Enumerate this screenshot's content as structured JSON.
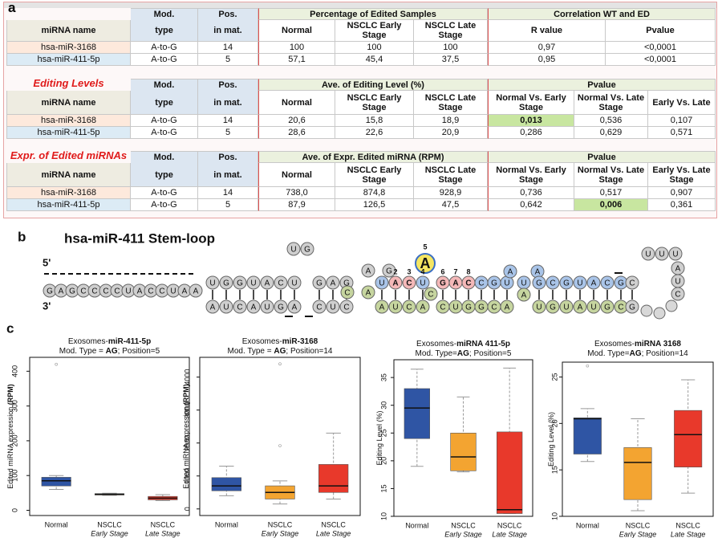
{
  "panel_labels": [
    "a",
    "b",
    "c"
  ],
  "tables": [
    {
      "head_top": [
        "Mod.",
        "Pos."
      ],
      "groups": [
        {
          "title": "Percentage of Edited Samples",
          "span": 3
        },
        {
          "title": "Correlation WT and ED",
          "span": 2
        }
      ],
      "head": [
        "miRNA name",
        "type",
        "in mat.",
        "Normal",
        "NSCLC Early Stage",
        "NSCLC Late Stage",
        "R value",
        "Pvalue"
      ],
      "rows": [
        [
          "hsa-miR-3168",
          "A-to-G",
          14,
          100,
          100,
          100,
          "0,97",
          "<0,0001"
        ],
        [
          "hsa-miR-411-5p",
          "A-to-G",
          5,
          "57,1",
          "45,4",
          "37,5",
          "0,95",
          "<0,0001"
        ]
      ]
    },
    {
      "label": "Editing Levels",
      "head_top": [
        "Mod.",
        "Pos."
      ],
      "groups": [
        {
          "title": "Ave. of Editing Level (%)",
          "span": 3
        },
        {
          "title": "Pvalue",
          "span": 3
        }
      ],
      "head": [
        "miRNA name",
        "type",
        "in mat.",
        "Normal",
        "NSCLC Early Stage",
        "NSCLC Late Stage",
        "Normal Vs. Early Stage",
        "Normal Vs. Late Stage",
        "Early Vs. Late"
      ],
      "rows": [
        [
          "hsa-miR-3168",
          "A-to-G",
          14,
          "20,6",
          "15,8",
          "18,9",
          "0,013",
          "0,536",
          "0,107"
        ],
        [
          "hsa-miR-411-5p",
          "A-to-G",
          5,
          "28,6",
          "22,6",
          "20,9",
          "0,286",
          "0,629",
          "0,571"
        ]
      ],
      "highlight": [
        0,
        6
      ]
    },
    {
      "label": "Expr. of Edited miRNAs",
      "head_top": [
        "Mod.",
        "Pos."
      ],
      "groups": [
        {
          "title": "Ave. of Expr. Edited miRNA (RPM)",
          "span": 3
        },
        {
          "title": "Pvalue",
          "span": 3
        }
      ],
      "head": [
        "miRNA name",
        "type",
        "in mat.",
        "Normal",
        "NSCLC Early Stage",
        "NSCLC Late Stage",
        "Normal Vs. Early Stage",
        "Normal Vs. Late Stage",
        "Early Vs. Late Stage"
      ],
      "rows": [
        [
          "hsa-miR-3168",
          "A-to-G",
          14,
          "738,0",
          "874,8",
          "928,9",
          "0,736",
          "0,517",
          "0,907"
        ],
        [
          "hsa-miR-411-5p",
          "A-to-G",
          5,
          "87,9",
          "126,5",
          "47,5",
          "0,642",
          "0,006",
          "0,361"
        ]
      ],
      "highlight": [
        1,
        7
      ]
    }
  ],
  "stem_loop": {
    "title": "hsa-miR-411 Stem-loop",
    "five_prime": "5'",
    "three_prime": "3'",
    "segments": [
      "GAGCCCCUACCUAA",
      "UGGUACU",
      "AUCAUGA",
      "UG",
      "GAG",
      "CUC",
      "A",
      "G",
      "CA",
      "UACU",
      "AUCA",
      "A",
      "C",
      "GACCGU",
      "CUGGCA",
      "AA",
      "U",
      "A",
      "GCGUACG",
      "UGUAUGC",
      "C",
      "G",
      "UUU",
      "AUC"
    ],
    "positions": [
      2,
      3,
      4,
      5,
      6,
      7,
      8
    ]
  },
  "chart_data": [
    {
      "type": "box",
      "title": [
        "Exosomes-",
        "miR-411-5p"
      ],
      "subtitle": [
        "Mod. Type = ",
        "AG",
        "; Position=5"
      ],
      "y_label": [
        "Edited miRNA expression ",
        "(RPM)"
      ],
      "categories": [
        [
          "Normal"
        ],
        [
          "NSCLC",
          "Early Stage"
        ],
        [
          "NSCLC",
          "Late Stage"
        ]
      ],
      "colors": [
        "#2f55a4",
        "#f3a431",
        "#e8392b"
      ],
      "ylim": [
        -15,
        440
      ],
      "yticks": [
        0,
        100,
        200,
        300,
        400
      ],
      "boxes": [
        {
          "low": 60,
          "q1": 70,
          "median": 85,
          "q3": 95,
          "high": 100,
          "outliers": [
            420
          ]
        },
        {
          "low": 43,
          "q1": 44,
          "median": 46,
          "q3": 48,
          "high": 49,
          "outliers": []
        },
        {
          "low": 28,
          "q1": 30,
          "median": 35,
          "q3": 40,
          "high": 45,
          "outliers": []
        }
      ]
    },
    {
      "type": "box",
      "title": [
        "Exosomes-",
        "miR-3168"
      ],
      "subtitle": [
        "Mod. Type = ",
        "AG",
        "; Position=14"
      ],
      "y_label": [
        "Edited miRNA expression ",
        "(RPM)"
      ],
      "categories": [
        [
          "Normal"
        ],
        [
          "NSCLC",
          "Early Stage"
        ],
        [
          "NSCLC",
          "Late Stage"
        ]
      ],
      "colors": [
        "#2f55a4",
        "#f3a431",
        "#e8392b"
      ],
      "ylim": [
        -200,
        4600
      ],
      "yticks": [
        0,
        1000,
        2000,
        3000,
        4000
      ],
      "boxes": [
        {
          "low": 400,
          "q1": 550,
          "median": 700,
          "q3": 950,
          "high": 1300,
          "outliers": []
        },
        {
          "low": 150,
          "q1": 300,
          "median": 500,
          "q3": 700,
          "high": 850,
          "outliers": [
            1920,
            4400
          ]
        },
        {
          "low": 300,
          "q1": 500,
          "median": 700,
          "q3": 1350,
          "high": 2300,
          "outliers": []
        }
      ]
    },
    {
      "type": "box",
      "title": [
        "Exosomes-",
        "miRNA 411-5p"
      ],
      "subtitle": [
        "Mod. Type=",
        "AG",
        "; Position=5"
      ],
      "y_label": [
        "Editing Level (%)"
      ],
      "categories": [
        [
          "Normal"
        ],
        [
          "NSCLC",
          "Early Stage"
        ],
        [
          "NSCLC",
          "Late Stage"
        ]
      ],
      "colors": [
        "#2f55a4",
        "#f3a431",
        "#e8392b"
      ],
      "ylim": [
        10,
        38.2
      ],
      "yticks": [
        10,
        15,
        20,
        25,
        30,
        35
      ],
      "boxes": [
        {
          "low": 19,
          "q1": 24,
          "median": 29.5,
          "q3": 33,
          "high": 36.5,
          "outliers": []
        },
        {
          "low": 18,
          "q1": 18.2,
          "median": 20.7,
          "q3": 25,
          "high": 31.5,
          "outliers": []
        },
        {
          "low": 10.5,
          "q1": 10.5,
          "median": 11.2,
          "q3": 25.2,
          "high": 36.7,
          "outliers": []
        }
      ]
    },
    {
      "type": "box",
      "title": [
        "Exosomes-",
        "miRNA 3168"
      ],
      "subtitle": [
        "Mod. Type=",
        "AG",
        "; Position=14"
      ],
      "y_label": [
        "Editing Level (%)"
      ],
      "categories": [
        [
          "Normal"
        ],
        [
          "NSCLC",
          "Early Stage"
        ],
        [
          "NSCLC",
          "Late Stage"
        ]
      ],
      "colors": [
        "#2f55a4",
        "#f3a431",
        "#e8392b"
      ],
      "ylim": [
        10,
        26.6
      ],
      "yticks": [
        10,
        15,
        20,
        25
      ],
      "boxes": [
        {
          "low": 15.9,
          "q1": 16.7,
          "median": 20.5,
          "q3": 20.6,
          "high": 21.6,
          "outliers": [
            26.2
          ]
        },
        {
          "low": 10.6,
          "q1": 11.8,
          "median": 15.8,
          "q3": 17.4,
          "high": 20.5,
          "outliers": []
        },
        {
          "low": 12.5,
          "q1": 15.3,
          "median": 18.8,
          "q3": 21.4,
          "high": 24.7,
          "outliers": []
        }
      ]
    }
  ]
}
